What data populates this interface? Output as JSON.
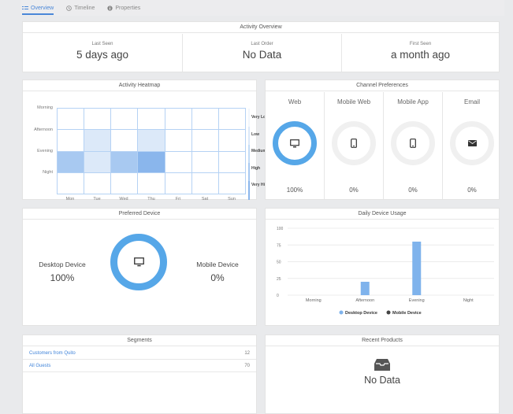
{
  "tabs": [
    {
      "label": "Overview",
      "icon": "overview-icon",
      "active": true
    },
    {
      "label": "Timeline",
      "icon": "clock-icon",
      "active": false
    },
    {
      "label": "Properties",
      "icon": "info-icon",
      "active": false
    }
  ],
  "activity_overview": {
    "title": "Activity Overview",
    "cells": [
      {
        "label": "Last Seen",
        "value": "5 days ago"
      },
      {
        "label": "Last Order",
        "value": "No Data"
      },
      {
        "label": "First Seen",
        "value": "a month ago"
      }
    ]
  },
  "heatmap": {
    "title": "Activity Heatmap",
    "rows": [
      "Morning",
      "Afternoon",
      "Evening",
      "Night"
    ],
    "cols": [
      "Mon",
      "Tue",
      "Wed",
      "Thu",
      "Fri",
      "Sat",
      "Sun"
    ],
    "levels": [
      [
        0,
        0,
        0,
        0,
        0,
        0,
        0
      ],
      [
        0,
        1,
        0,
        1,
        0,
        0,
        0
      ],
      [
        3,
        1,
        3,
        4,
        0,
        0,
        0
      ],
      [
        0,
        0,
        0,
        0,
        0,
        0,
        0
      ]
    ],
    "legend": [
      "Very Low",
      "Low",
      "Medium",
      "High",
      "Very High"
    ],
    "level_colors": [
      "#ffffff",
      "#dce9f9",
      "#c3dbf6",
      "#a8c9f1",
      "#8ab6ec"
    ]
  },
  "channels": {
    "title": "Channel Preferences",
    "items": [
      {
        "name": "Web",
        "percent": "100%",
        "icon": "monitor-icon",
        "active": true
      },
      {
        "name": "Mobile Web",
        "percent": "0%",
        "icon": "mobile-web-icon",
        "active": false
      },
      {
        "name": "Mobile App",
        "percent": "0%",
        "icon": "mobile-app-icon",
        "active": false
      },
      {
        "name": "Email",
        "percent": "0%",
        "icon": "envelope-icon",
        "active": false
      }
    ]
  },
  "preferred_device": {
    "title": "Preferred Device",
    "desktop_label": "Desktop Device",
    "desktop_value": "100%",
    "mobile_label": "Mobile Device",
    "mobile_value": "0%",
    "icon": "monitor-icon"
  },
  "chart_data": {
    "type": "bar",
    "title": "Daily Device Usage",
    "categories": [
      "Morning",
      "Afternoon",
      "Evening",
      "Night"
    ],
    "series": [
      {
        "name": "Desktop Device",
        "color": "#7fb3ec",
        "values": [
          0,
          20,
          80,
          0
        ]
      },
      {
        "name": "Mobile Device",
        "color": "#444444",
        "values": [
          0,
          0,
          0,
          0
        ]
      }
    ],
    "yticks": [
      0,
      25,
      50,
      75,
      100
    ],
    "ylim": [
      0,
      100
    ],
    "xlabel": "",
    "ylabel": "",
    "legend_position": "bottom"
  },
  "segments": {
    "title": "Segments",
    "rows": [
      {
        "name": "Customers from Quito",
        "count": "12"
      },
      {
        "name": "All Guests",
        "count": "70"
      }
    ]
  },
  "recent_products": {
    "title": "Recent Products",
    "empty_text": "No Data",
    "icon": "inbox-icon"
  },
  "colors": {
    "accent": "#56a7e8",
    "link": "#3f83d9",
    "bar": "#7fb3ec"
  }
}
